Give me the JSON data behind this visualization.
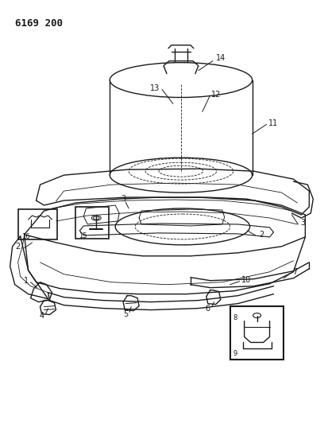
{
  "title": "6169 200",
  "bg_color": "#ffffff",
  "line_color": "#1a1a1a",
  "fig_width": 4.08,
  "fig_height": 5.33,
  "dpi": 100
}
